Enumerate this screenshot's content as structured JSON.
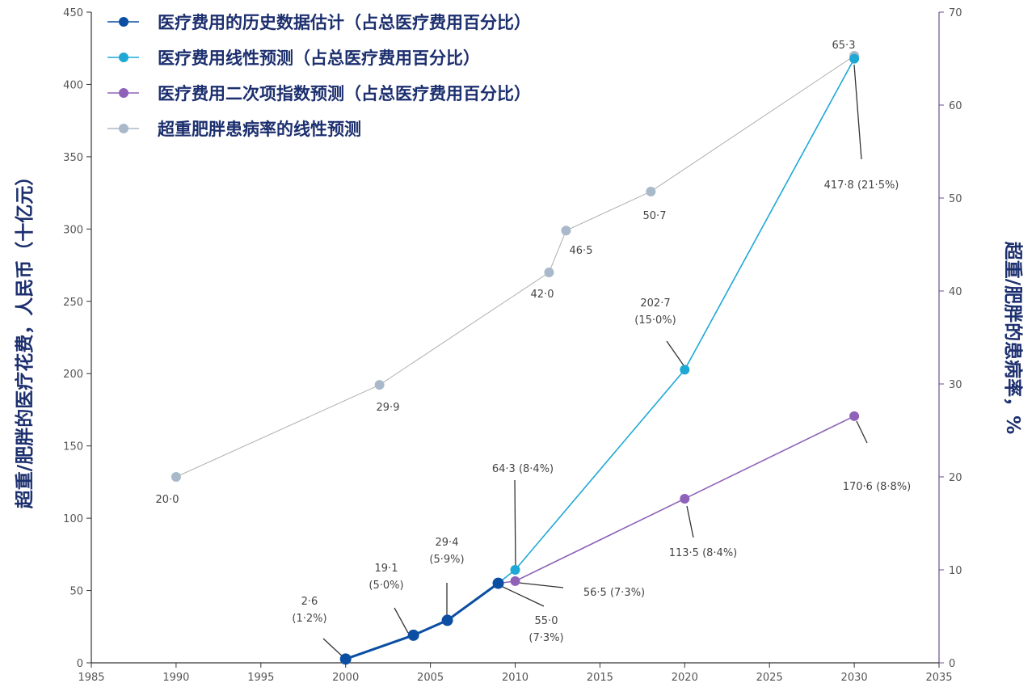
{
  "chart_data": {
    "type": "line",
    "x_axis": {
      "range": [
        1985,
        2035
      ],
      "ticks": [
        "1985",
        "1990",
        "1995",
        "2000",
        "2005",
        "2010",
        "2015",
        "2020",
        "2025",
        "2030",
        "2035"
      ]
    },
    "y_left": {
      "label": "超重/肥胖的医疗花费，人民币（十亿元）",
      "range": [
        0,
        450
      ],
      "ticks": [
        "0",
        "50",
        "100",
        "150",
        "200",
        "250",
        "300",
        "350",
        "400",
        "450"
      ]
    },
    "y_right": {
      "label": "超重/肥胖的患病率，%",
      "range": [
        0,
        70
      ],
      "ticks": [
        "0",
        "10",
        "20",
        "30",
        "40",
        "50",
        "60",
        "70"
      ]
    },
    "grid": false,
    "legend_position": "top-left",
    "series": [
      {
        "name": "医疗费用的历史数据估计（占总医疗费用百分比）",
        "axis": "left",
        "color": "#0b4ea2",
        "x": [
          2000,
          2004,
          2006,
          2009
        ],
        "y": [
          2.6,
          19.1,
          29.4,
          55.0
        ],
        "labels": [
          [
            "2·6",
            "(1·2%)"
          ],
          [
            "19·1",
            "(5·0%)"
          ],
          [
            "29·4",
            "(5·9%)"
          ],
          [
            "55·0",
            "(7·3%)"
          ]
        ]
      },
      {
        "name": "医疗费用线性预测（占总医疗费用百分比）",
        "axis": "left",
        "color": "#1ea8d6",
        "x": [
          2009,
          2010,
          2020,
          2030
        ],
        "y": [
          55.0,
          64.3,
          202.7,
          417.8
        ],
        "labels": [
          [],
          [
            "64·3 (8·4%)"
          ],
          [
            "202·7",
            "(15·0%)"
          ],
          [
            "417·8 (21·5%)"
          ]
        ]
      },
      {
        "name": "医疗费用二次项指数预测（占总医疗费用百分比）",
        "axis": "left",
        "color": "#8e62b8",
        "x": [
          2009,
          2010,
          2020,
          2030
        ],
        "y": [
          55.0,
          56.5,
          113.5,
          170.6
        ],
        "labels": [
          [],
          [
            "56·5 (7·3%)"
          ],
          [
            "113·5 (8·4%)"
          ],
          [
            "170·6 (8·8%)"
          ]
        ]
      },
      {
        "name": "超重肥胖患病率的线性预测",
        "axis": "right",
        "color": "#a9b9c9",
        "x": [
          1990,
          2002,
          2012,
          2013,
          2018,
          2030
        ],
        "y": [
          20.0,
          29.9,
          42.0,
          46.5,
          50.7,
          65.3
        ],
        "labels": [
          [
            "20·0"
          ],
          [
            "29·9"
          ],
          [
            "42·0"
          ],
          [
            "46·5"
          ],
          [
            "50·7"
          ],
          [
            "65·3"
          ]
        ]
      }
    ]
  }
}
